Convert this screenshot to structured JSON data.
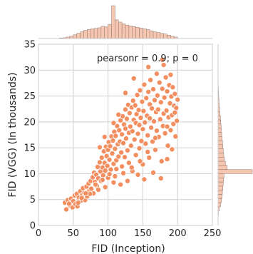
{
  "colors": {
    "marker_fill": "#f28e5f",
    "marker_edge": "#ffffff",
    "hist_fill": "#f7c6b0",
    "hist_edge": "#8c7a72",
    "grid": "#cfcfcf"
  },
  "chart_data": {
    "type": "scatter",
    "title": "",
    "xlabel": "FID (Inception)",
    "ylabel": "FID (VGG) (In thousands)",
    "xlim": [
      0,
      250
    ],
    "ylim": [
      0,
      35
    ],
    "x_ticks": [
      0,
      50,
      100,
      150,
      200,
      250
    ],
    "y_ticks": [
      0,
      5,
      10,
      15,
      20,
      25,
      30,
      35
    ],
    "grid": true,
    "annotation": "pearsonr = 0.9; p = 0",
    "series": [
      {
        "points": [
          [
            38,
            4.4
          ],
          [
            40,
            3.1
          ],
          [
            42,
            4.9
          ],
          [
            45,
            3.9
          ],
          [
            47,
            5.2
          ],
          [
            49,
            3.5
          ],
          [
            50,
            4.7
          ],
          [
            52,
            5.8
          ],
          [
            53,
            4.1
          ],
          [
            55,
            6.1
          ],
          [
            56,
            3.7
          ],
          [
            58,
            5.4
          ],
          [
            60,
            6.6
          ],
          [
            61,
            4.8
          ],
          [
            63,
            5.9
          ],
          [
            64,
            7.2
          ],
          [
            66,
            6.3
          ],
          [
            67,
            4.9
          ],
          [
            69,
            7.5
          ],
          [
            70,
            5.6
          ],
          [
            72,
            8.1
          ],
          [
            73,
            6.7
          ],
          [
            75,
            8.6
          ],
          [
            76,
            7.1
          ],
          [
            78,
            9.3
          ],
          [
            79,
            6.2
          ],
          [
            80,
            10.2
          ],
          [
            81,
            8.4
          ],
          [
            83,
            9.8
          ],
          [
            84,
            7.6
          ],
          [
            85,
            11.3
          ],
          [
            86,
            9.1
          ],
          [
            88,
            12.2
          ],
          [
            89,
            10.4
          ],
          [
            90,
            8.6
          ],
          [
            91,
            13.1
          ],
          [
            92,
            11.2
          ],
          [
            93,
            9.7
          ],
          [
            94,
            14.3
          ],
          [
            95,
            12.1
          ],
          [
            96,
            10.6
          ],
          [
            97,
            15.2
          ],
          [
            98,
            13.4
          ],
          [
            99,
            11.5
          ],
          [
            100,
            14.6
          ],
          [
            100,
            9.2
          ],
          [
            101,
            16.1
          ],
          [
            102,
            12.7
          ],
          [
            103,
            15.3
          ],
          [
            104,
            10.8
          ],
          [
            105,
            17.2
          ],
          [
            106,
            13.9
          ],
          [
            107,
            16.4
          ],
          [
            108,
            11.9
          ],
          [
            109,
            18.1
          ],
          [
            110,
            14.8
          ],
          [
            110,
            9.5
          ],
          [
            111,
            17.3
          ],
          [
            112,
            12.6
          ],
          [
            113,
            19.2
          ],
          [
            114,
            15.7
          ],
          [
            115,
            13.3
          ],
          [
            116,
            18.4
          ],
          [
            117,
            16.2
          ],
          [
            118,
            20.3
          ],
          [
            119,
            14.1
          ],
          [
            120,
            17.6
          ],
          [
            120,
            11.4
          ],
          [
            121,
            21.1
          ],
          [
            122,
            15.9
          ],
          [
            123,
            19.5
          ],
          [
            124,
            13.2
          ],
          [
            125,
            18.7
          ],
          [
            125,
            22.4
          ],
          [
            126,
            16.8
          ],
          [
            127,
            20.6
          ],
          [
            128,
            14.5
          ],
          [
            129,
            23.3
          ],
          [
            130,
            17.9
          ],
          [
            130,
            12.1
          ],
          [
            131,
            21.7
          ],
          [
            132,
            19.1
          ],
          [
            133,
            15.4
          ],
          [
            134,
            22.8
          ],
          [
            135,
            18.2
          ],
          [
            135,
            10.5
          ],
          [
            136,
            24.1
          ],
          [
            137,
            20.4
          ],
          [
            138,
            16.6
          ],
          [
            139,
            23.2
          ],
          [
            140,
            19.8
          ],
          [
            140,
            13.6
          ],
          [
            141,
            21.5
          ],
          [
            142,
            25.2
          ],
          [
            143,
            17.7
          ],
          [
            144,
            22.3
          ],
          [
            145,
            14.9
          ],
          [
            145,
            19.4
          ],
          [
            146,
            26.1
          ],
          [
            147,
            20.8
          ],
          [
            148,
            16.3
          ],
          [
            149,
            23.9
          ],
          [
            150,
            18.6
          ],
          [
            150,
            11.8
          ],
          [
            151,
            22.1
          ],
          [
            152,
            27.2
          ],
          [
            153,
            19.9
          ],
          [
            154,
            15.8
          ],
          [
            155,
            24.6
          ],
          [
            156,
            21.2
          ],
          [
            157,
            17.4
          ],
          [
            158,
            25.8
          ],
          [
            159,
            13.1
          ],
          [
            160,
            20.7
          ],
          [
            160,
            23.4
          ],
          [
            161,
            28.1
          ],
          [
            162,
            18.9
          ],
          [
            163,
            22.6
          ],
          [
            164,
            16.2
          ],
          [
            165,
            26.3
          ],
          [
            166,
            20.1
          ],
          [
            167,
            24.2
          ],
          [
            168,
            14.6
          ],
          [
            169,
            21.9
          ],
          [
            170,
            29.3
          ],
          [
            170,
            18.3
          ],
          [
            171,
            25.1
          ],
          [
            172,
            22.4
          ],
          [
            173,
            17.1
          ],
          [
            174,
            27.6
          ],
          [
            175,
            20.5
          ],
          [
            176,
            23.8
          ],
          [
            177,
            12.4
          ],
          [
            178,
            26.4
          ],
          [
            179,
            19.2
          ],
          [
            180,
            21.6
          ],
          [
            180,
            31.0
          ],
          [
            181,
            24.7
          ],
          [
            182,
            17.8
          ],
          [
            183,
            28.6
          ],
          [
            184,
            22.2
          ],
          [
            185,
            25.9
          ],
          [
            186,
            15.4
          ],
          [
            187,
            20.9
          ],
          [
            188,
            27.1
          ],
          [
            189,
            23.6
          ],
          [
            190,
            18.4
          ],
          [
            190,
            29.1
          ],
          [
            191,
            24.9
          ],
          [
            192,
            21.3
          ],
          [
            193,
            26.7
          ],
          [
            194,
            19.6
          ],
          [
            195,
            23.1
          ],
          [
            196,
            25.4
          ],
          [
            197,
            17.2
          ],
          [
            198,
            22.7
          ],
          [
            199,
            20.2
          ],
          [
            200,
            24.3
          ],
          [
            152,
            8.9
          ],
          [
            165,
            10.2
          ],
          [
            143,
            9.8
          ],
          [
            128,
            8.6
          ],
          [
            118,
            7.9
          ],
          [
            108,
            8.3
          ],
          [
            96,
            7.4
          ],
          [
            86,
            6.9
          ],
          [
            74,
            6.1
          ],
          [
            62,
            5.3
          ],
          [
            57,
            4.4
          ],
          [
            44,
            4.2
          ],
          [
            115,
            21.4
          ],
          [
            125,
            25.6
          ],
          [
            108,
            19.8
          ],
          [
            137,
            28.4
          ],
          [
            158,
            30.6
          ],
          [
            178,
            32.0
          ],
          [
            95,
            17.1
          ],
          [
            88,
            15.1
          ],
          [
            176,
            9.1
          ],
          [
            185,
            12.8
          ],
          [
            192,
            14.7
          ],
          [
            134,
            11.2
          ],
          [
            146,
            12.4
          ],
          [
            157,
            14.2
          ],
          [
            168,
            16.9
          ],
          [
            185,
            19.1
          ],
          [
            196,
            21.8
          ],
          [
            122,
            10.1
          ],
          [
            112,
            10.9
          ],
          [
            102,
            9.9
          ],
          [
            92,
            8.8
          ],
          [
            82,
            7.9
          ],
          [
            68,
            6.2
          ]
        ]
      }
    ],
    "x_marginal": {
      "bins_start": 30,
      "bin_width": 5,
      "counts": [
        0.4,
        0.5,
        1,
        1.5,
        2.5,
        3.5,
        4.5,
        5.5,
        6,
        6.5,
        6.8,
        7.2,
        8.2,
        7.8,
        9.5,
        22,
        12.5,
        11,
        9.8,
        9,
        8.5,
        8,
        7.5,
        7,
        6.5,
        6,
        5.2,
        4.5,
        4,
        3.5,
        3,
        2.2,
        1.5,
        1
      ]
    },
    "y_marginal": {
      "bins_start": 2,
      "bin_width": 0.8,
      "counts": [
        0.3,
        1,
        2.2,
        3,
        3.5,
        3.8,
        4.2,
        4.5,
        4.8,
        5.2,
        30,
        8,
        6.5,
        5.5,
        5,
        4.6,
        4.2,
        3.9,
        3.5,
        3.2,
        3,
        2.6,
        2.3,
        2,
        1.6,
        1.3,
        1,
        0.8,
        0.6,
        0.4,
        0.3,
        0.2,
        0.1
      ]
    }
  }
}
